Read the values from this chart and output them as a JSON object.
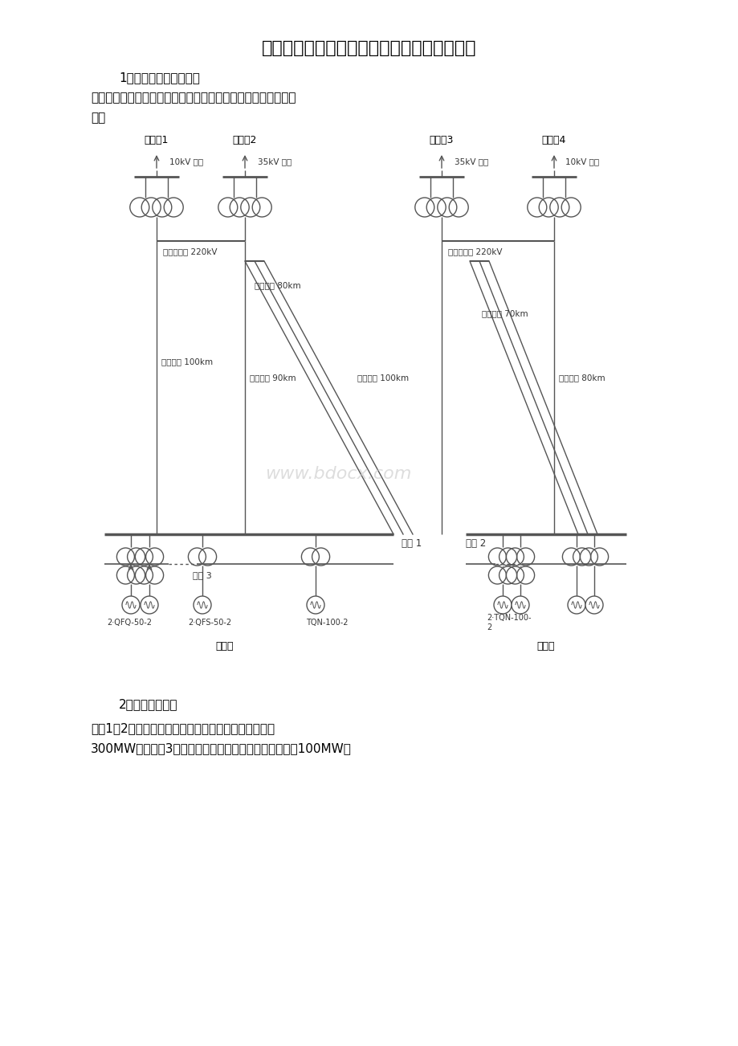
{
  "title": "电力系统课程设计报告信息工程学院课程设计",
  "section1": "1原始资料的提出与分析",
  "intro_line1": "系统图：两个发电厂分别通过变压器和输电线路与四个变电所相",
  "intro_line2": "连。",
  "section2": "2、发电厂资料：",
  "body_line1": "母线1和2为发电厂高压母线，发电厂一总装机容量为（",
  "body_line2": "300MW），母线3为机压母线，机压母线上装机容量为（100MW）",
  "watermark": "www.bdocx.com",
  "bg_color": "#ffffff",
  "sub_names": [
    "变电所1",
    "变电所2",
    "变电所3",
    "变电所4"
  ],
  "kv_labels": [
    "10kV 母线",
    "35kV 母线",
    "35kV 母线",
    "10kV 母线"
  ],
  "voltage_220": "一次侧电压 220kV",
  "line_len_labels": [
    [
      180,
      430,
      "线路长为 100km",
      "left"
    ],
    [
      310,
      455,
      "线路长为 90km",
      "left"
    ],
    [
      320,
      360,
      "线路长为 80km",
      "left"
    ],
    [
      470,
      455,
      "线路长为 100km",
      "left"
    ],
    [
      600,
      385,
      "线路长为 70km",
      "left"
    ],
    [
      650,
      455,
      "线路长为 80km",
      "left"
    ]
  ],
  "bus1_label": "母线 1",
  "bus2_label": "母线 2",
  "bus3_label": "母线 3",
  "plant1_label": "电厂一",
  "plant2_label": "电厂二",
  "gen_label1": "2·QFQ-50-2",
  "gen_label2": "2·QFS-50-2",
  "gen_label3": "TQN-100-2",
  "gen_label4": "2·TQN-100-\n2"
}
